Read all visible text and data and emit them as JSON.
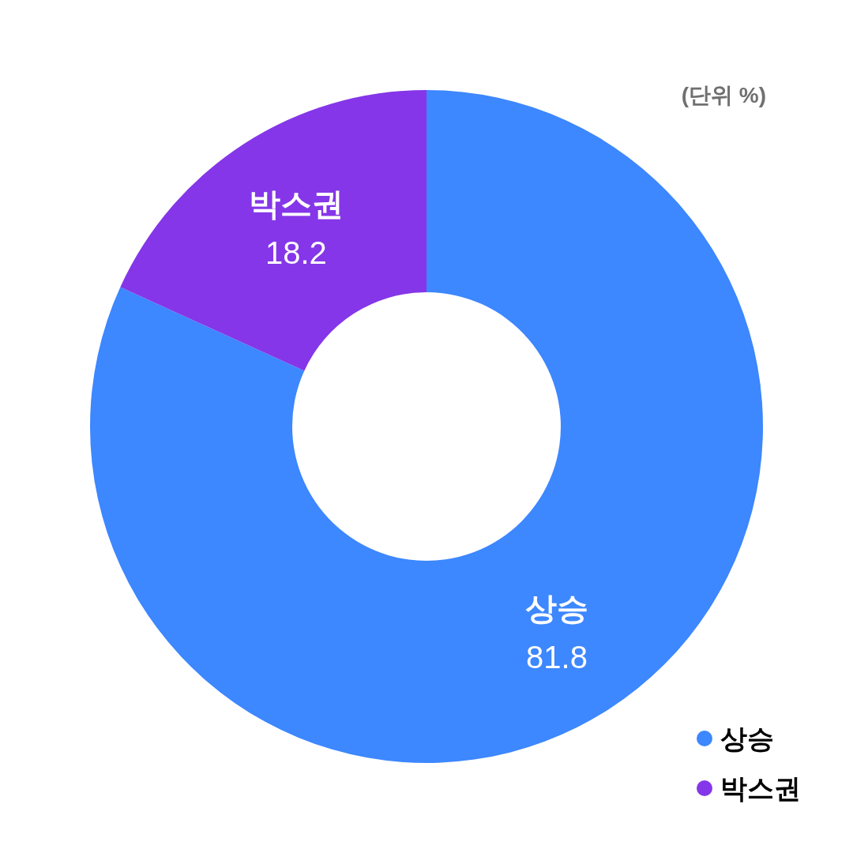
{
  "chart_data": {
    "type": "donut",
    "categories": [
      "상승",
      "박스권"
    ],
    "values": [
      81.8,
      18.2
    ],
    "colors": [
      "#3d87ff",
      "#8536e8"
    ],
    "annotations": [
      "(단위 %)"
    ],
    "data_labels": true,
    "legend": "bottom right"
  }
}
